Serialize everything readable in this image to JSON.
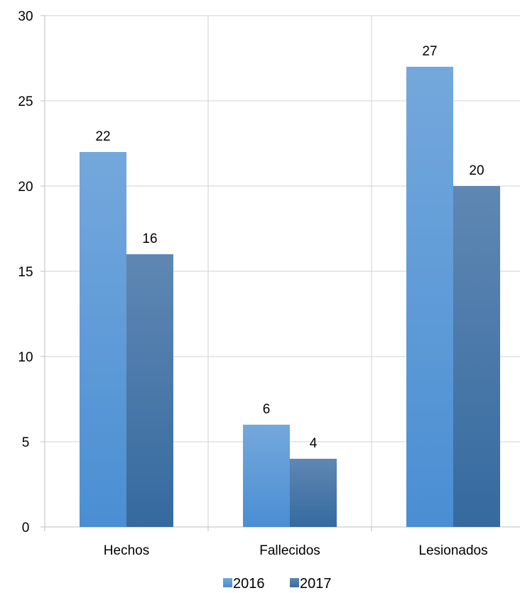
{
  "chart_data": {
    "type": "bar",
    "categories": [
      "Hechos",
      "Fallecidos",
      "Lesionados"
    ],
    "series": [
      {
        "name": "2016",
        "values": [
          22,
          6,
          27
        ]
      },
      {
        "name": "2017",
        "values": [
          16,
          4,
          20
        ]
      }
    ],
    "ylim": [
      0,
      30
    ],
    "yticks": [
      0,
      5,
      10,
      15,
      20,
      25,
      30
    ],
    "grid": true,
    "legend": "bottom-center",
    "colors": {
      "2016_top": "#74a8dc",
      "2016_bottom": "#4a8ed3",
      "2017_top": "#5f87b3",
      "2017_bottom": "#356a9f",
      "grid": "#d0d0d0",
      "axis": "#bfbfbf"
    }
  }
}
